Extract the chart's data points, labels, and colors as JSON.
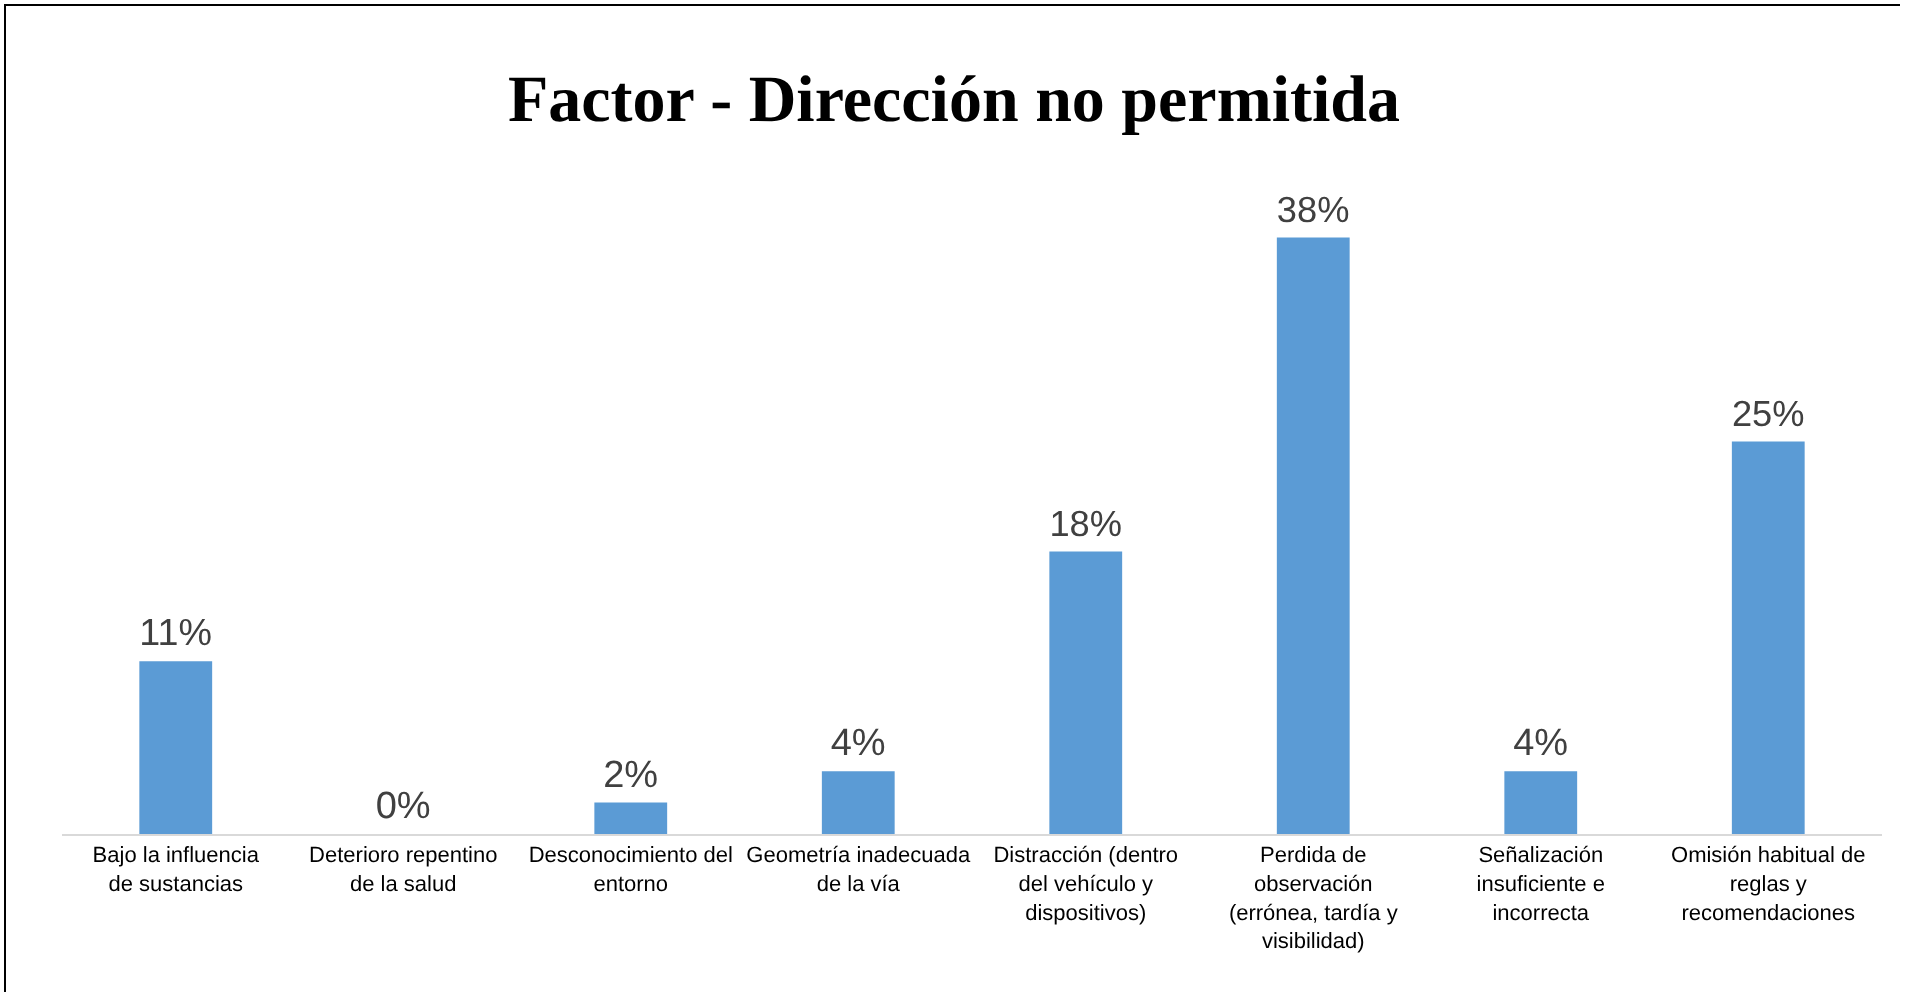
{
  "chart_data": {
    "type": "bar",
    "title": "Factor - Dirección no permitida",
    "categories": [
      "Bajo la influencia de sustancias",
      "Deterioro repentino de la salud",
      "Desconocimiento del entorno",
      "Geometría inadecuada de la vía",
      "Distracción (dentro del vehículo y dispositivos)",
      "Perdida de observación (errónea, tardía y visibilidad)",
      "Señalización insuficiente e incorrecta",
      "Omisión habitual de reglas y recomendaciones"
    ],
    "values": [
      11,
      0,
      2,
      4,
      18,
      38,
      4,
      25
    ],
    "value_labels": [
      "11%",
      "0%",
      "2%",
      "4%",
      "18%",
      "38%",
      "4%",
      "25%"
    ],
    "color": "#5b9bd5"
  }
}
